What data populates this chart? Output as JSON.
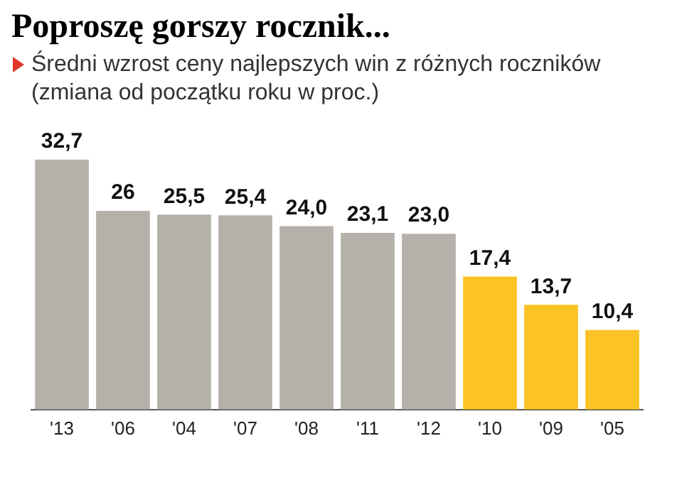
{
  "chart_data": {
    "type": "bar",
    "title": "Poproszę gorszy rocznik...",
    "subtitle": "Średni wzrost ceny najlepszych win z różnych roczników (zmiana od początku roku w proc.)",
    "categories": [
      "'13",
      "'06",
      "'04",
      "'07",
      "'08",
      "'11",
      "'12",
      "'10",
      "'09",
      "'05"
    ],
    "values": [
      32.7,
      26,
      25.5,
      25.4,
      24.0,
      23.1,
      23.0,
      17.4,
      13.7,
      10.4
    ],
    "colors": [
      "#b5b1aa",
      "#b5b1aa",
      "#b5b1aa",
      "#b5b1aa",
      "#b5b1aa",
      "#b5b1aa",
      "#b5b1aa",
      "#fcc325",
      "#fcc325",
      "#fcc325"
    ],
    "value_labels": [
      "32,7",
      "26",
      "25,5",
      "25,4",
      "24,0",
      "23,1",
      "23,0",
      "17,4",
      "13,7",
      "10,4"
    ],
    "tick_labels": "x",
    "grid": false,
    "legend": false
  }
}
